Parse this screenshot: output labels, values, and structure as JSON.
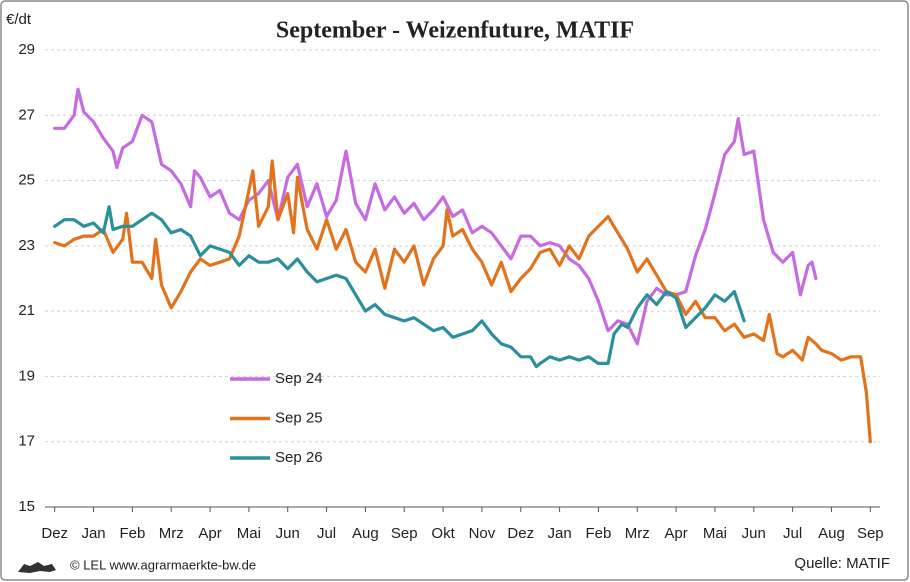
{
  "chart_data": {
    "type": "line",
    "title": "September - Weizenfuture, MATIF",
    "y_label": "€/dt",
    "footer": "© LEL www.agrarmaerkte-bw.de",
    "source": "Quelle:  MATIF",
    "xlim": [
      -0.25,
      21.25
    ],
    "xticks": [
      {
        "value": 0,
        "label": "Dez"
      },
      {
        "value": 1,
        "label": "Jan"
      },
      {
        "value": 2,
        "label": "Feb"
      },
      {
        "value": 3,
        "label": "Mrz"
      },
      {
        "value": 4,
        "label": "Apr"
      },
      {
        "value": 5,
        "label": "Mai"
      },
      {
        "value": 6,
        "label": "Jun"
      },
      {
        "value": 7,
        "label": "Jul"
      },
      {
        "value": 8,
        "label": "Aug"
      },
      {
        "value": 9,
        "label": "Sep"
      },
      {
        "value": 10,
        "label": "Okt"
      },
      {
        "value": 11,
        "label": "Nov"
      },
      {
        "value": 12,
        "label": "Dez"
      },
      {
        "value": 13,
        "label": "Jan"
      },
      {
        "value": 14,
        "label": "Feb"
      },
      {
        "value": 15,
        "label": "Mrz"
      },
      {
        "value": 16,
        "label": "Apr"
      },
      {
        "value": 17,
        "label": "Mai"
      },
      {
        "value": 18,
        "label": "Jun"
      },
      {
        "value": 19,
        "label": "Jul"
      },
      {
        "value": 20,
        "label": "Aug"
      },
      {
        "value": 21,
        "label": "Sep"
      }
    ],
    "ylim": [
      15,
      29
    ],
    "yticks": [
      15,
      17,
      19,
      21,
      23,
      25,
      27,
      29
    ],
    "grid": true,
    "legend": "center-left",
    "series": [
      {
        "name": "Sep 24",
        "color": "#c66be0",
        "x": [
          0,
          0.25,
          0.5,
          0.6,
          0.75,
          1,
          1.25,
          1.5,
          1.6,
          1.75,
          2,
          2.25,
          2.5,
          2.75,
          3,
          3.25,
          3.5,
          3.6,
          3.75,
          4,
          4.25,
          4.5,
          4.75,
          5,
          5.25,
          5.5,
          5.75,
          6,
          6.25,
          6.5,
          6.75,
          7,
          7.25,
          7.5,
          7.75,
          8,
          8.25,
          8.5,
          8.75,
          9,
          9.25,
          9.5,
          9.75,
          10,
          10.25,
          10.5,
          10.75,
          11,
          11.25,
          11.5,
          11.75,
          12,
          12.25,
          12.5,
          12.75,
          13,
          13.25,
          13.5,
          13.75,
          14,
          14.25,
          14.5,
          14.75,
          15,
          15.25,
          15.5,
          15.75,
          16,
          16.25,
          16.5,
          16.75,
          17,
          17.25,
          17.5,
          17.6,
          17.75,
          18,
          18.25,
          18.5,
          18.75,
          19,
          19.2,
          19.4,
          19.5,
          19.6
        ],
        "values": [
          26.6,
          26.6,
          27.0,
          27.8,
          27.1,
          26.8,
          26.3,
          25.9,
          25.4,
          26.0,
          26.2,
          27.0,
          26.8,
          25.5,
          25.3,
          24.9,
          24.2,
          25.3,
          25.1,
          24.5,
          24.7,
          24.0,
          23.8,
          24.4,
          24.6,
          25.0,
          23.8,
          25.1,
          25.5,
          24.2,
          24.9,
          23.9,
          24.4,
          25.9,
          24.3,
          23.8,
          24.9,
          24.1,
          24.5,
          24.0,
          24.3,
          23.8,
          24.1,
          24.5,
          23.9,
          24.1,
          23.4,
          23.6,
          23.4,
          23.0,
          22.6,
          23.3,
          23.3,
          23.0,
          23.1,
          23.0,
          22.6,
          22.4,
          22.0,
          21.3,
          20.4,
          20.7,
          20.6,
          20.0,
          21.3,
          21.7,
          21.5,
          21.5,
          21.6,
          22.7,
          23.5,
          24.6,
          25.8,
          26.2,
          26.9,
          25.8,
          25.9,
          23.8,
          22.8,
          22.5,
          22.8,
          21.5,
          22.4,
          22.5,
          22.0
        ]
      },
      {
        "name": "Sep 25",
        "color": "#e2731c",
        "x": [
          0,
          0.25,
          0.5,
          0.75,
          1,
          1.25,
          1.5,
          1.75,
          1.85,
          2,
          2.25,
          2.5,
          2.6,
          2.75,
          3,
          3.25,
          3.5,
          3.75,
          4,
          4.25,
          4.5,
          4.75,
          5,
          5.1,
          5.25,
          5.5,
          5.6,
          5.75,
          6,
          6.15,
          6.25,
          6.5,
          6.75,
          7,
          7.25,
          7.5,
          7.75,
          8,
          8.25,
          8.5,
          8.75,
          9,
          9.25,
          9.5,
          9.75,
          10,
          10.1,
          10.25,
          10.5,
          10.75,
          11,
          11.25,
          11.5,
          11.75,
          12,
          12.25,
          12.5,
          12.75,
          13,
          13.25,
          13.5,
          13.75,
          14,
          14.25,
          14.5,
          14.75,
          15,
          15.25,
          15.5,
          15.75,
          16,
          16.25,
          16.5,
          16.75,
          17,
          17.25,
          17.5,
          17.75,
          18,
          18.25,
          18.4,
          18.6,
          18.75,
          19,
          19.25,
          19.4,
          19.6,
          19.75,
          20,
          20.25,
          20.5,
          20.75,
          20.9,
          21
        ],
        "values": [
          23.1,
          23.0,
          23.2,
          23.3,
          23.3,
          23.5,
          22.8,
          23.2,
          24.0,
          22.5,
          22.5,
          22.0,
          23.2,
          21.8,
          21.1,
          21.6,
          22.2,
          22.6,
          22.4,
          22.5,
          22.6,
          23.3,
          24.7,
          25.3,
          23.6,
          24.2,
          25.6,
          23.8,
          24.6,
          23.4,
          25.1,
          23.5,
          22.9,
          23.8,
          22.9,
          23.5,
          22.5,
          22.2,
          22.9,
          21.7,
          22.9,
          22.5,
          23.0,
          21.8,
          22.6,
          23.0,
          24.1,
          23.3,
          23.5,
          22.9,
          22.5,
          21.8,
          22.5,
          21.6,
          22.0,
          22.3,
          22.8,
          22.9,
          22.4,
          23.0,
          22.6,
          23.3,
          23.6,
          23.9,
          23.4,
          22.9,
          22.2,
          22.6,
          22.1,
          21.6,
          21.5,
          20.9,
          21.3,
          20.8,
          20.8,
          20.4,
          20.6,
          20.2,
          20.3,
          20.1,
          20.9,
          19.7,
          19.6,
          19.8,
          19.5,
          20.2,
          20.0,
          19.8,
          19.7,
          19.5,
          19.6,
          19.6,
          18.5,
          17.0
        ]
      },
      {
        "name": "Sep 26",
        "color": "#2b8f9c",
        "x": [
          0,
          0.25,
          0.5,
          0.75,
          1,
          1.25,
          1.4,
          1.5,
          1.75,
          2,
          2.25,
          2.5,
          2.75,
          3,
          3.25,
          3.5,
          3.75,
          4,
          4.25,
          4.5,
          4.75,
          5,
          5.25,
          5.5,
          5.75,
          6,
          6.25,
          6.5,
          6.75,
          7,
          7.25,
          7.5,
          7.75,
          8,
          8.25,
          8.5,
          8.75,
          9,
          9.25,
          9.5,
          9.75,
          10,
          10.25,
          10.5,
          10.75,
          11,
          11.25,
          11.5,
          11.75,
          12,
          12.25,
          12.4,
          12.5,
          12.75,
          13,
          13.25,
          13.5,
          13.75,
          14,
          14.25,
          14.4,
          14.6,
          14.75,
          15,
          15.25,
          15.5,
          15.75,
          16,
          16.25,
          16.5,
          16.75,
          17,
          17.25,
          17.5,
          17.75
        ],
        "values": [
          23.6,
          23.8,
          23.8,
          23.6,
          23.7,
          23.4,
          24.2,
          23.5,
          23.6,
          23.6,
          23.8,
          24.0,
          23.8,
          23.4,
          23.5,
          23.3,
          22.7,
          23.0,
          22.9,
          22.8,
          22.4,
          22.7,
          22.5,
          22.5,
          22.6,
          22.3,
          22.6,
          22.2,
          21.9,
          22.0,
          22.1,
          22.0,
          21.5,
          21.0,
          21.2,
          20.9,
          20.8,
          20.7,
          20.8,
          20.6,
          20.4,
          20.5,
          20.2,
          20.3,
          20.4,
          20.7,
          20.3,
          20.0,
          19.9,
          19.6,
          19.6,
          19.3,
          19.4,
          19.6,
          19.5,
          19.6,
          19.5,
          19.6,
          19.4,
          19.4,
          20.3,
          20.6,
          20.5,
          21.1,
          21.5,
          21.2,
          21.6,
          21.4,
          20.5,
          20.8,
          21.1,
          21.5,
          21.3,
          21.6,
          20.7
        ]
      }
    ]
  }
}
